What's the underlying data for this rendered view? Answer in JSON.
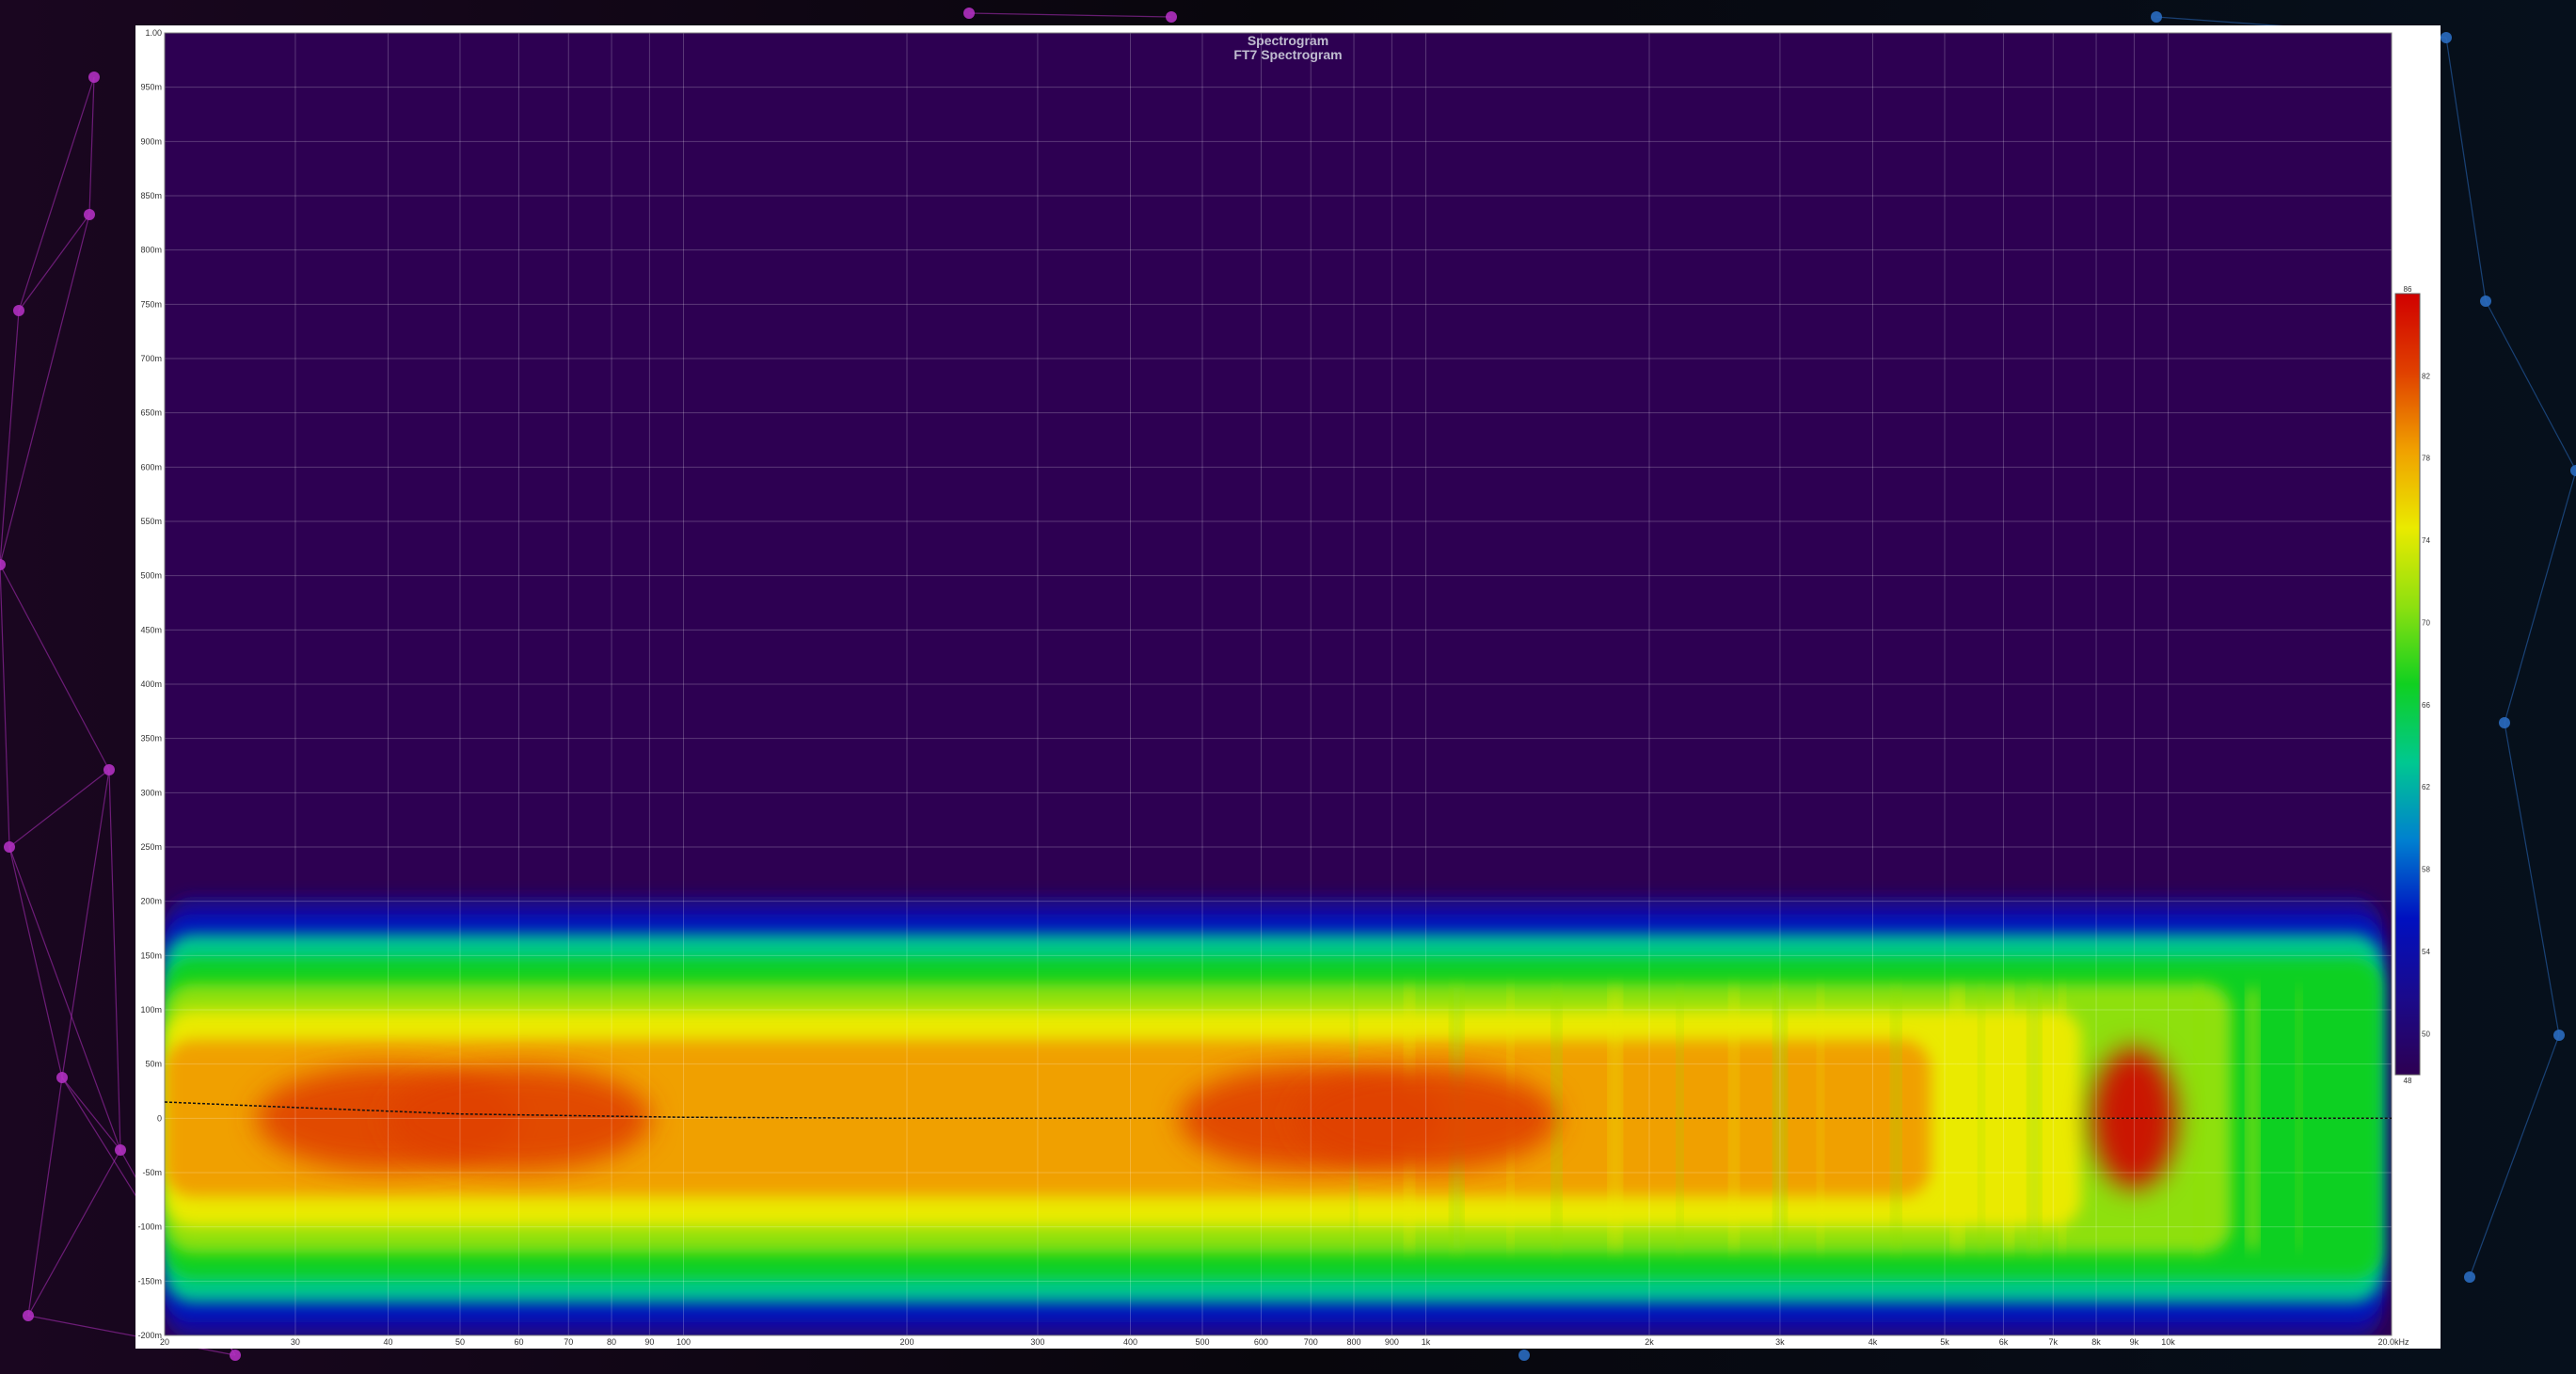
{
  "chart_data": {
    "type": "heatmap",
    "title": "Spectrogram",
    "subtitle": "FT7 Spectrogram",
    "xlabel": "",
    "ylabel": "",
    "x_scale": "log",
    "x_unit_label": "20.0kHz",
    "x_ticks": [
      {
        "value": 20,
        "label": "20"
      },
      {
        "value": 30,
        "label": "30"
      },
      {
        "value": 40,
        "label": "40"
      },
      {
        "value": 50,
        "label": "50"
      },
      {
        "value": 60,
        "label": "60"
      },
      {
        "value": 70,
        "label": "70"
      },
      {
        "value": 80,
        "label": "80"
      },
      {
        "value": 90,
        "label": "90"
      },
      {
        "value": 100,
        "label": "100"
      },
      {
        "value": 200,
        "label": "200"
      },
      {
        "value": 300,
        "label": "300"
      },
      {
        "value": 400,
        "label": "400"
      },
      {
        "value": 500,
        "label": "500"
      },
      {
        "value": 600,
        "label": "600"
      },
      {
        "value": 700,
        "label": "700"
      },
      {
        "value": 800,
        "label": "800"
      },
      {
        "value": 900,
        "label": "900"
      },
      {
        "value": 1000,
        "label": "1k"
      },
      {
        "value": 2000,
        "label": "2k"
      },
      {
        "value": 3000,
        "label": "3k"
      },
      {
        "value": 4000,
        "label": "4k"
      },
      {
        "value": 5000,
        "label": "5k"
      },
      {
        "value": 6000,
        "label": "6k"
      },
      {
        "value": 7000,
        "label": "7k"
      },
      {
        "value": 8000,
        "label": "8k"
      },
      {
        "value": 9000,
        "label": "9k"
      },
      {
        "value": 10000,
        "label": "10k"
      }
    ],
    "xlim": [
      20,
      20000
    ],
    "ylim": [
      -0.2,
      1.0
    ],
    "y_ticks": [
      {
        "value": 1.0,
        "label": "1.00"
      },
      {
        "value": 0.95,
        "label": "950m"
      },
      {
        "value": 0.9,
        "label": "900m"
      },
      {
        "value": 0.85,
        "label": "850m"
      },
      {
        "value": 0.8,
        "label": "800m"
      },
      {
        "value": 0.75,
        "label": "750m"
      },
      {
        "value": 0.7,
        "label": "700m"
      },
      {
        "value": 0.65,
        "label": "650m"
      },
      {
        "value": 0.6,
        "label": "600m"
      },
      {
        "value": 0.55,
        "label": "550m"
      },
      {
        "value": 0.5,
        "label": "500m"
      },
      {
        "value": 0.45,
        "label": "450m"
      },
      {
        "value": 0.4,
        "label": "400m"
      },
      {
        "value": 0.35,
        "label": "350m"
      },
      {
        "value": 0.3,
        "label": "300m"
      },
      {
        "value": 0.25,
        "label": "250m"
      },
      {
        "value": 0.2,
        "label": "200m"
      },
      {
        "value": 0.15,
        "label": "150m"
      },
      {
        "value": 0.1,
        "label": "100m"
      },
      {
        "value": 0.05,
        "label": "50m"
      },
      {
        "value": 0,
        "label": "0"
      },
      {
        "value": -0.05,
        "label": "-50m"
      },
      {
        "value": -0.1,
        "label": "-100m"
      },
      {
        "value": -0.15,
        "label": "-150m"
      },
      {
        "value": -0.2,
        "label": "-200m"
      }
    ],
    "colorbar": {
      "range": [
        48,
        86
      ],
      "ticks": [
        {
          "value": 86,
          "label": "86"
        },
        {
          "value": 82,
          "label": "82"
        },
        {
          "value": 78,
          "label": "78"
        },
        {
          "value": 74,
          "label": "74"
        },
        {
          "value": 70,
          "label": "70"
        },
        {
          "value": 66,
          "label": "66"
        },
        {
          "value": 62,
          "label": "62"
        },
        {
          "value": 58,
          "label": "58"
        },
        {
          "value": 54,
          "label": "54"
        },
        {
          "value": 50,
          "label": "50"
        },
        {
          "value": 48,
          "label": "48"
        }
      ],
      "colors": [
        "#2d0052",
        "#1a0a8c",
        "#0010c0",
        "#0080d0",
        "#00c890",
        "#10d020",
        "#8ee010",
        "#eaea00",
        "#f0a000",
        "#e04000",
        "#d00000"
      ]
    },
    "energy_band": {
      "upper_edge": 0.2,
      "lower_edge": -0.2,
      "high_frequency_falloff": 20000
    },
    "hot_spots": [
      {
        "freq": 40,
        "time": 0.0,
        "level": 82
      },
      {
        "freq": 60,
        "time": 0.0,
        "level": 83
      },
      {
        "freq": 700,
        "time": 0.0,
        "level": 82
      },
      {
        "freq": 1000,
        "time": 0.0,
        "level": 81
      },
      {
        "freq": 9000,
        "time": 0.0,
        "level": 86
      }
    ],
    "series": [
      {
        "type": "line",
        "x": [
          20,
          30,
          50,
          100,
          200,
          500,
          1000,
          5000,
          20000
        ],
        "y": [
          0.015,
          0.01,
          0.004,
          0.001,
          0.0,
          0.0,
          0.0,
          0.0,
          0.0
        ]
      }
    ],
    "grid": true,
    "colorbar_placement": "right"
  }
}
